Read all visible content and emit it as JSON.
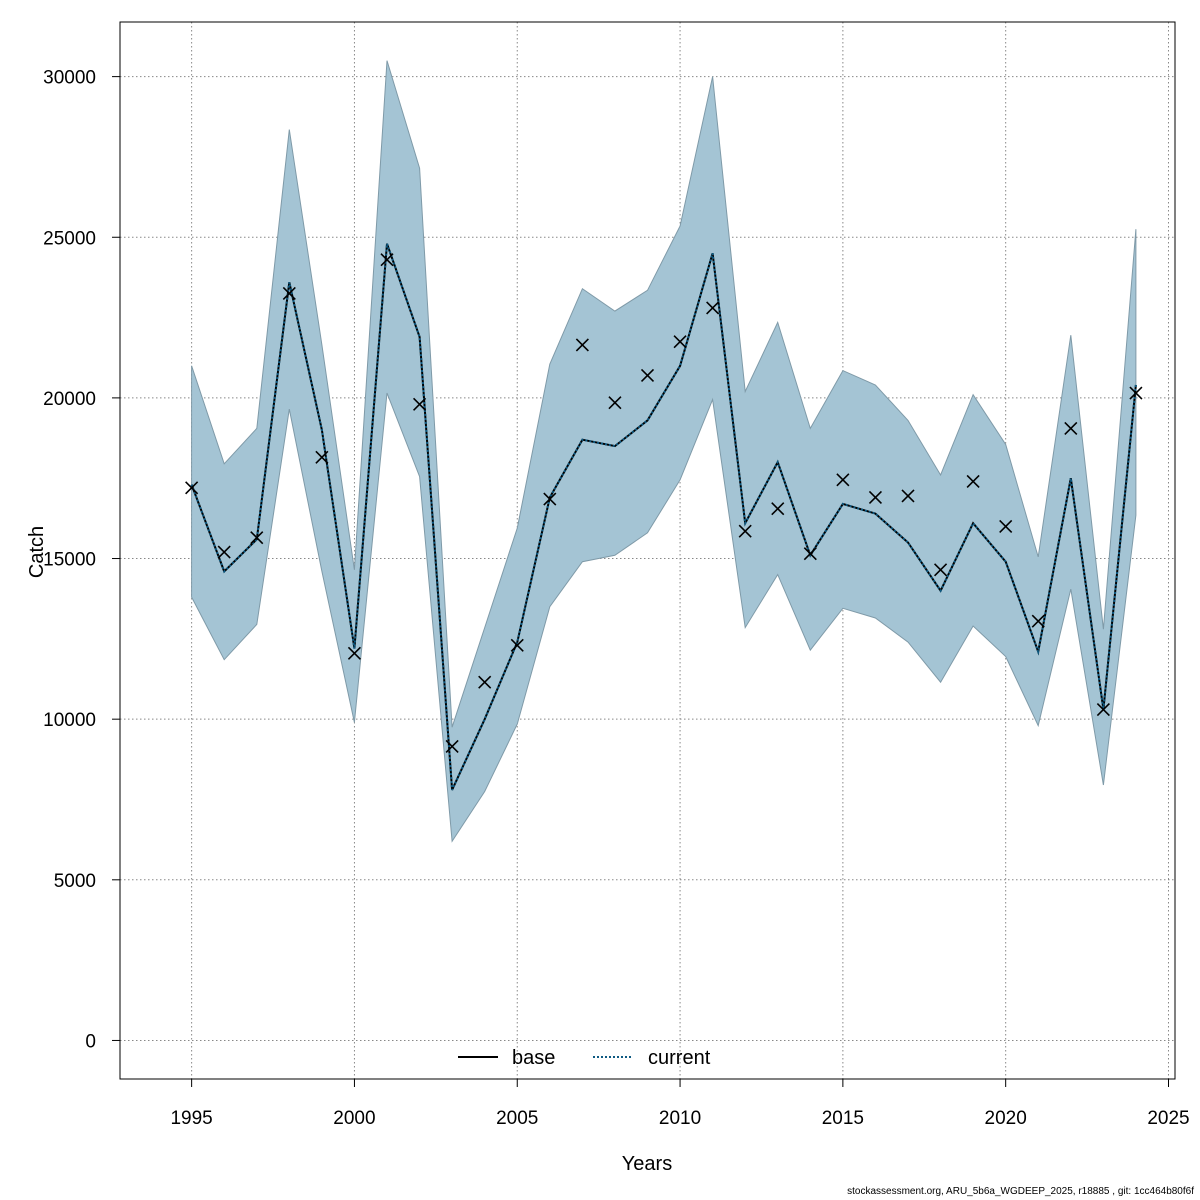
{
  "chart_data": {
    "type": "line",
    "xlabel": "Years",
    "ylabel": "Catch",
    "xlim": [
      1992.8,
      2025.2
    ],
    "ylim": [
      -1200,
      31700
    ],
    "x_ticks": [
      1995,
      2000,
      2005,
      2010,
      2015,
      2020,
      2025
    ],
    "y_ticks": [
      0,
      5000,
      10000,
      15000,
      20000,
      25000,
      30000
    ],
    "grid": true,
    "legend_position": "bottom-center",
    "years": [
      1995,
      1996,
      1997,
      1998,
      1999,
      2000,
      2001,
      2002,
      2003,
      2004,
      2005,
      2006,
      2007,
      2008,
      2009,
      2010,
      2011,
      2012,
      2013,
      2014,
      2015,
      2016,
      2017,
      2018,
      2019,
      2020,
      2021,
      2022,
      2023,
      2024
    ],
    "series": [
      {
        "name": "base",
        "style": "solid",
        "color": "#000000",
        "values": [
          17300,
          14600,
          15600,
          23600,
          19000,
          12200,
          24800,
          21900,
          7800,
          10000,
          12400,
          16900,
          18700,
          18500,
          19300,
          21000,
          24500,
          16100,
          18000,
          15100,
          16700,
          16400,
          15500,
          14000,
          16100,
          14900,
          12100,
          17500,
          10300,
          20400
        ]
      },
      {
        "name": "current",
        "style": "dotted",
        "color": "#0e5a82",
        "values": [
          17300,
          14600,
          15600,
          23600,
          19000,
          12200,
          24800,
          21900,
          7800,
          10000,
          12400,
          16900,
          18700,
          18500,
          19300,
          21000,
          24500,
          16100,
          18000,
          15100,
          16700,
          16400,
          15500,
          14000,
          16100,
          14900,
          12100,
          17500,
          10300,
          20400
        ]
      }
    ],
    "confidence_band": {
      "color": "#a4c4d4",
      "upper": [
        21000,
        17950,
        19050,
        28350,
        21650,
        14650,
        30500,
        27150,
        9750,
        12850,
        15950,
        21050,
        23400,
        22700,
        23350,
        25350,
        30000,
        20200,
        22350,
        19050,
        20850,
        20400,
        19300,
        17600,
        20100,
        18550,
        15050,
        21950,
        12800,
        25250
      ],
      "lower": [
        13800,
        11850,
        12950,
        19650,
        14600,
        9900,
        20150,
        17550,
        6200,
        7750,
        9850,
        13500,
        14900,
        15100,
        15800,
        17450,
        19950,
        12850,
        14500,
        12150,
        13450,
        13150,
        12400,
        11150,
        12900,
        11950,
        9800,
        14050,
        7950,
        16350
      ]
    },
    "observed": {
      "marker": "x",
      "values": [
        17200,
        15200,
        15650,
        23250,
        18150,
        12050,
        24300,
        19800,
        9150,
        11150,
        12300,
        16850,
        21650,
        19850,
        20700,
        21750,
        22800,
        15850,
        16550,
        15150,
        17450,
        16900,
        16950,
        14650,
        17400,
        16000,
        13050,
        19050,
        10300,
        20150
      ]
    }
  },
  "footer_text": "stockassessment.org, ARU_5b6a_WGDEEP_2025, r18885 , git: 1cc464b80f6f"
}
